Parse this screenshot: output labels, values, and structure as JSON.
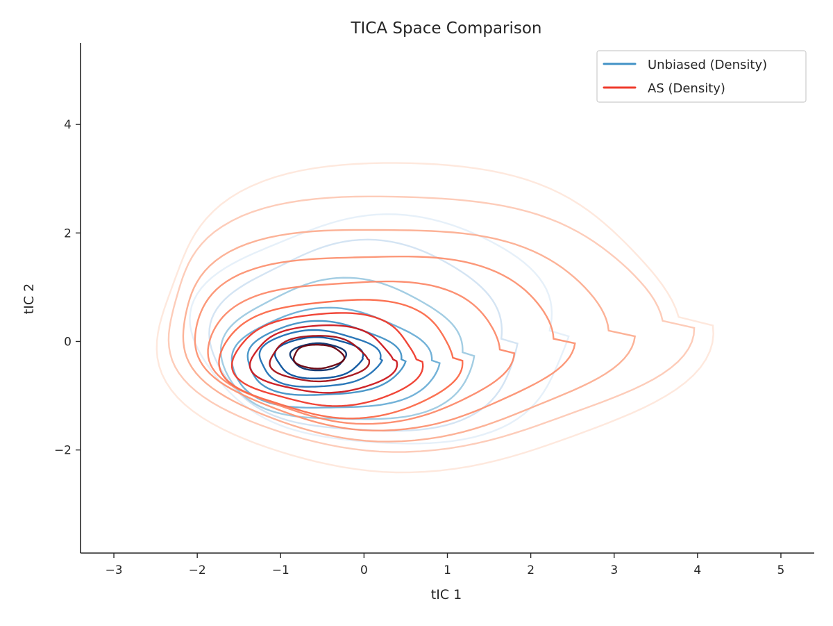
{
  "chart_data": {
    "type": "contour",
    "title": "TICA Space Comparison",
    "xlabel": "tIC 1",
    "ylabel": "tIC 2",
    "xlim": [
      -3.4,
      5.4
    ],
    "ylim": [
      -3.9,
      5.5
    ],
    "xticks": [
      {
        "value": -3,
        "label": "−3"
      },
      {
        "value": -2,
        "label": "−2"
      },
      {
        "value": -1,
        "label": "−1"
      },
      {
        "value": 0,
        "label": "0"
      },
      {
        "value": 1,
        "label": "1"
      },
      {
        "value": 2,
        "label": "2"
      },
      {
        "value": 3,
        "label": "3"
      },
      {
        "value": 4,
        "label": "4"
      },
      {
        "value": 5,
        "label": "5"
      }
    ],
    "yticks": [
      {
        "value": -2,
        "label": "−2"
      },
      {
        "value": 0,
        "label": "0"
      },
      {
        "value": 2,
        "label": "2"
      },
      {
        "value": 4,
        "label": "4"
      }
    ],
    "grid": false,
    "legend_position": "top-right",
    "series": [
      {
        "name": "Unbiased (Density)",
        "color": "#4292c6",
        "colormap": "Blues",
        "center": [
          -0.55,
          -0.28
        ],
        "contours": [
          {
            "cx": -0.55,
            "cy": -0.28,
            "rx": 0.33,
            "ry": 0.25,
            "color": "#08306b"
          },
          {
            "cx": -0.55,
            "cy": -0.3,
            "rx": 0.52,
            "ry": 0.38,
            "color": "#08519c"
          },
          {
            "cx": -0.55,
            "cy": -0.32,
            "rx": 0.72,
            "ry": 0.52,
            "color": "#2171b5"
          },
          {
            "cx": -0.5,
            "cy": -0.33,
            "rx": 0.92,
            "ry": 0.68,
            "color": "#4292c6"
          },
          {
            "cx": -0.4,
            "cy": -0.35,
            "rx": 1.2,
            "ry": 0.92,
            "color": "#6baed6"
          },
          {
            "cx": -0.25,
            "cy": -0.2,
            "rx": 1.45,
            "ry": 1.3,
            "color": "#9ecae1"
          },
          {
            "cx": -0.05,
            "cy": 0.05,
            "rx": 1.75,
            "ry": 1.75,
            "color": "#c6dbef"
          },
          {
            "cx": 0.15,
            "cy": 0.2,
            "rx": 2.15,
            "ry": 2.1,
            "color": "#deebf7"
          }
        ]
      },
      {
        "name": "AS (Density)",
        "color": "#ef3b2c",
        "colormap": "Reds",
        "center": [
          -0.55,
          -0.3
        ],
        "contours": [
          {
            "cx": -0.55,
            "cy": -0.28,
            "rx": 0.3,
            "ry": 0.22,
            "color": "#67000d"
          },
          {
            "cx": -0.55,
            "cy": -0.32,
            "rx": 0.58,
            "ry": 0.42,
            "color": "#a50f15"
          },
          {
            "cx": -0.5,
            "cy": -0.33,
            "rx": 0.85,
            "ry": 0.62,
            "color": "#cb181d"
          },
          {
            "cx": -0.45,
            "cy": -0.33,
            "rx": 1.1,
            "ry": 0.85,
            "color": "#ef3b2c"
          },
          {
            "cx": -0.3,
            "cy": -0.3,
            "rx": 1.4,
            "ry": 1.08,
            "color": "#fb6a4a"
          },
          {
            "cx": -0.1,
            "cy": -0.15,
            "rx": 1.75,
            "ry": 1.3,
            "color": "#fc8a6a"
          },
          {
            "cx": 0.1,
            "cy": 0.05,
            "rx": 2.15,
            "ry": 1.6,
            "color": "#fc9272"
          },
          {
            "cx": 0.3,
            "cy": 0.2,
            "rx": 2.55,
            "ry": 1.95,
            "color": "#fcae91"
          },
          {
            "cx": 0.5,
            "cy": 0.38,
            "rx": 2.95,
            "ry": 2.35,
            "color": "#fcbba1"
          },
          {
            "cx": 0.55,
            "cy": 0.45,
            "rx": 3.1,
            "ry": 2.85,
            "color": "#fee0d2"
          }
        ]
      }
    ]
  }
}
